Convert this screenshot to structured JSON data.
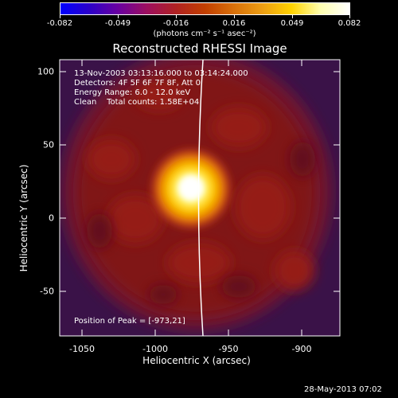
{
  "colorbar": {
    "colors": [
      "#0000ff",
      "#2c00c8",
      "#6a00a0",
      "#9d0f5e",
      "#b02222",
      "#c23f00",
      "#d8700a",
      "#ec9e13",
      "#ffd300",
      "#ffffb0",
      "#ffffff"
    ],
    "tick_labels": [
      "-0.082",
      "-0.049",
      "-0.016",
      "0.016",
      "0.049",
      "0.082"
    ],
    "units": "(photons cm⁻² s⁻¹ asec⁻²)"
  },
  "title": "Reconstructed RHESSI Image",
  "info": {
    "time_range": "13-Nov-2003 03:13:16.000 to 03:14:24.000",
    "detectors": "Detectors: 4F 5F 6F 7F 8F, Att 0",
    "energy": "Energy Range: 6.0 - 12.0 keV",
    "method": "Clean    Total counts: 1.58E+04",
    "peak": "Position of Peak = [-973,21]"
  },
  "axes": {
    "xlabel": "Heliocentric X (arcsec)",
    "ylabel": "Heliocentric Y (arcsec)",
    "xticks": [
      "-1050",
      "-1000",
      "-950",
      "-900"
    ],
    "yticks": [
      "100",
      "50",
      "0",
      "-50"
    ]
  },
  "footer": "28-May-2013 07:02"
}
